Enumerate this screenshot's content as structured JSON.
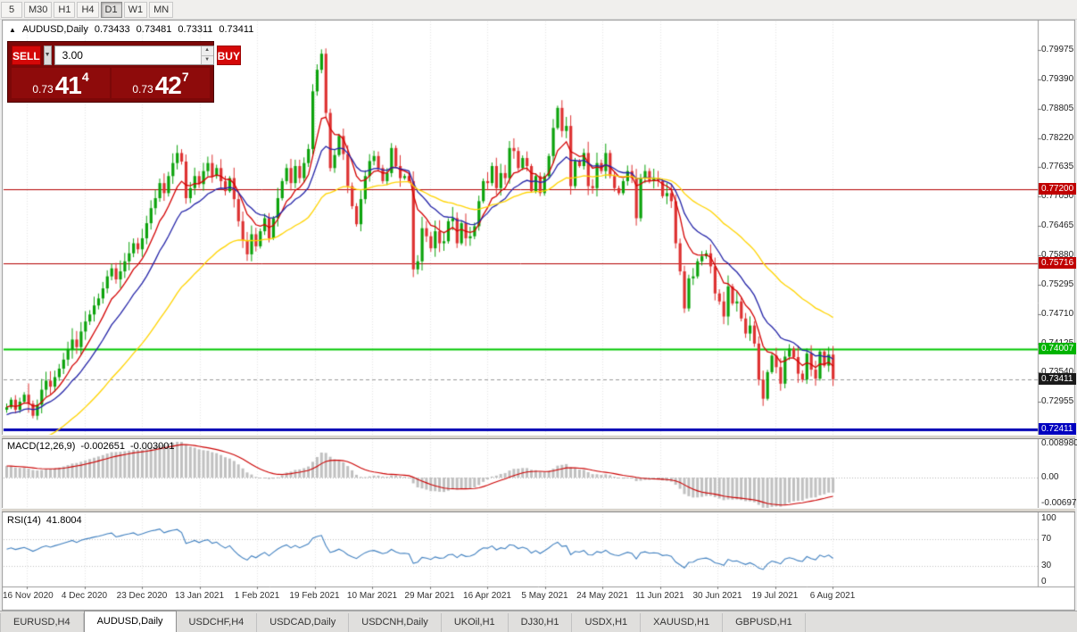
{
  "toolbar": {
    "timeframes": [
      {
        "label": "5",
        "active": false
      },
      {
        "label": "M30",
        "active": false
      },
      {
        "label": "H1",
        "active": false
      },
      {
        "label": "H4",
        "active": false
      },
      {
        "label": "D1",
        "active": true
      },
      {
        "label": "W1",
        "active": false
      },
      {
        "label": "MN",
        "active": false
      }
    ]
  },
  "icons": {
    "symbol_marker": "▲",
    "dropdown_caret": "▼",
    "spinner_up": "▲",
    "spinner_down": "▼"
  },
  "chart_header": {
    "symbol": "AUDUSD,Daily",
    "open": "0.73433",
    "high": "0.73481",
    "low": "0.73311",
    "close": "0.73411"
  },
  "trade_panel": {
    "sell_label": "SELL",
    "buy_label": "BUY",
    "volume_value": "3.00",
    "sell_price_prefix": "0.73",
    "sell_price_big": "41",
    "sell_price_sup": "4",
    "buy_price_prefix": "0.73",
    "buy_price_big": "42",
    "buy_price_sup": "7"
  },
  "price_scale": {
    "ticks": [
      "0.79975",
      "0.79390",
      "0.78805",
      "0.78220",
      "0.77635",
      "0.77050",
      "0.76465",
      "0.75880",
      "0.75295",
      "0.74710",
      "0.74125",
      "0.73540",
      "0.72955"
    ],
    "badges": [
      {
        "label": "0.77200",
        "color": "#C00000",
        "interactable": true
      },
      {
        "label": "0.75716",
        "color": "#C00000",
        "interactable": true
      },
      {
        "label": "0.74007",
        "color": "#00B400",
        "interactable": true
      },
      {
        "label": "0.73411",
        "color": "#1A1A1A",
        "interactable": false
      },
      {
        "label": "0.72411",
        "color": "#0000C0",
        "interactable": true
      }
    ]
  },
  "macd_panel": {
    "label": "MACD(12,26,9)",
    "value_main": "-0.002651",
    "value_signal": "-0.003001",
    "scale": [
      "0.008980",
      "0.00",
      "-0.00697"
    ],
    "histogram_color": "#C0C0C0",
    "signal_color": "#CC0000"
  },
  "rsi_panel": {
    "label": "RSI(14)",
    "value": "41.8004",
    "scale": [
      "100",
      "70",
      "30",
      "0"
    ],
    "line_color": "#4080C0"
  },
  "date_axis": [
    "16 Nov 2020",
    "4 Dec 2020",
    "23 Dec 2020",
    "13 Jan 2021",
    "1 Feb 2021",
    "19 Feb 2021",
    "10 Mar 2021",
    "29 Mar 2021",
    "16 Apr 2021",
    "5 May 2021",
    "24 May 2021",
    "11 Jun 2021",
    "30 Jun 2021",
    "19 Jul 2021",
    "6 Aug 2021"
  ],
  "tabs": [
    {
      "label": "EURUSD,H4",
      "active": false
    },
    {
      "label": "AUDUSD,Daily",
      "active": true
    },
    {
      "label": "USDCHF,H4",
      "active": false
    },
    {
      "label": "USDCAD,Daily",
      "active": false
    },
    {
      "label": "USDCNH,Daily",
      "active": false
    },
    {
      "label": "UKOil,H1",
      "active": false
    },
    {
      "label": "DJ30,H1",
      "active": false
    },
    {
      "label": "USDX,H1",
      "active": false
    },
    {
      "label": "XAUUSD,H1",
      "active": false
    },
    {
      "label": "GBPUSD,H1",
      "active": false
    }
  ],
  "chart_data": {
    "type": "candlestick",
    "symbol": "AUDUSD",
    "timeframe": "Daily",
    "current_ohlc": {
      "open": 0.73433,
      "high": 0.73481,
      "low": 0.73311,
      "close": 0.73411
    },
    "bid": 0.73414,
    "ask": 0.73427,
    "up_color": "#0CA30C",
    "down_color": "#DE3232",
    "open_first": 0.728,
    "closes": [
      0.7285,
      0.73,
      0.728,
      0.7296,
      0.731,
      0.7292,
      0.7268,
      0.729,
      0.732,
      0.7338,
      0.7326,
      0.7345,
      0.7362,
      0.738,
      0.74,
      0.742,
      0.7405,
      0.7436,
      0.7456,
      0.747,
      0.7488,
      0.7502,
      0.7522,
      0.7546,
      0.7562,
      0.754,
      0.7556,
      0.7576,
      0.7592,
      0.7612,
      0.76,
      0.7622,
      0.7652,
      0.7682,
      0.7702,
      0.7732,
      0.7712,
      0.7746,
      0.7772,
      0.7792,
      0.7775,
      0.7702,
      0.7722,
      0.7746,
      0.773,
      0.7756,
      0.7772,
      0.7746,
      0.7762,
      0.7736,
      0.7716,
      0.7742,
      0.77,
      0.7656,
      0.7618,
      0.759,
      0.763,
      0.7606,
      0.7636,
      0.7662,
      0.7622,
      0.7662,
      0.7702,
      0.7736,
      0.7762,
      0.7732,
      0.7766,
      0.7742,
      0.7772,
      0.78,
      0.7915,
      0.7958,
      0.799,
      0.7872,
      0.7762,
      0.7788,
      0.7826,
      0.779,
      0.7726,
      0.7686,
      0.765,
      0.77,
      0.7746,
      0.7776,
      0.7786,
      0.7762,
      0.7736,
      0.7752,
      0.7802,
      0.7766,
      0.7742,
      0.7746,
      0.7736,
      0.756,
      0.7576,
      0.7642,
      0.7626,
      0.7602,
      0.7636,
      0.7612,
      0.7616,
      0.7656,
      0.7662,
      0.7612,
      0.7652,
      0.7622,
      0.7626,
      0.7646,
      0.7696,
      0.7736,
      0.7732,
      0.7766,
      0.7722,
      0.7752,
      0.7742,
      0.7802,
      0.7796,
      0.7762,
      0.7782,
      0.7766,
      0.7716,
      0.7746,
      0.7712,
      0.7746,
      0.7786,
      0.7842,
      0.7882,
      0.7836,
      0.7846,
      0.7726,
      0.7776,
      0.7766,
      0.7792,
      0.7726,
      0.7722,
      0.7772,
      0.7756,
      0.7792,
      0.7746,
      0.7722,
      0.7712,
      0.7736,
      0.7756,
      0.7742,
      0.7662,
      0.7742,
      0.7756,
      0.7736,
      0.7742,
      0.7736,
      0.7706,
      0.7712,
      0.7696,
      0.7612,
      0.7556,
      0.7482,
      0.7542,
      0.7546,
      0.7576,
      0.7586,
      0.7592,
      0.7566,
      0.7512,
      0.7496,
      0.7466,
      0.7526,
      0.7492,
      0.7496,
      0.7462,
      0.7432,
      0.7448,
      0.7412,
      0.734,
      0.7302,
      0.7355,
      0.7388,
      0.7365,
      0.7332,
      0.7386,
      0.7402,
      0.7385,
      0.7352,
      0.734,
      0.7392,
      0.736,
      0.7342,
      0.7396,
      0.7368,
      0.739,
      0.7341
    ],
    "moving_averages": [
      {
        "period": 8,
        "color": "#D40000",
        "seed": 0.7285
      },
      {
        "period": 16,
        "color": "#2424A8",
        "seed": 0.7268
      },
      {
        "period": 42,
        "color": "#FFD400",
        "seed": 0.718
      }
    ],
    "levels": [
      {
        "price": 0.772,
        "color": "#B40000",
        "width": 1,
        "dash": false
      },
      {
        "price": 0.75716,
        "color": "#B40000",
        "width": 1,
        "dash": false
      },
      {
        "price": 0.74007,
        "color": "#00C800",
        "width": 2,
        "dash": false
      },
      {
        "price": 0.72411,
        "color": "#0000B4",
        "width": 3,
        "dash": false
      },
      {
        "price": 0.73411,
        "color": "#9A9A9A",
        "width": 1,
        "dash": true
      }
    ]
  }
}
